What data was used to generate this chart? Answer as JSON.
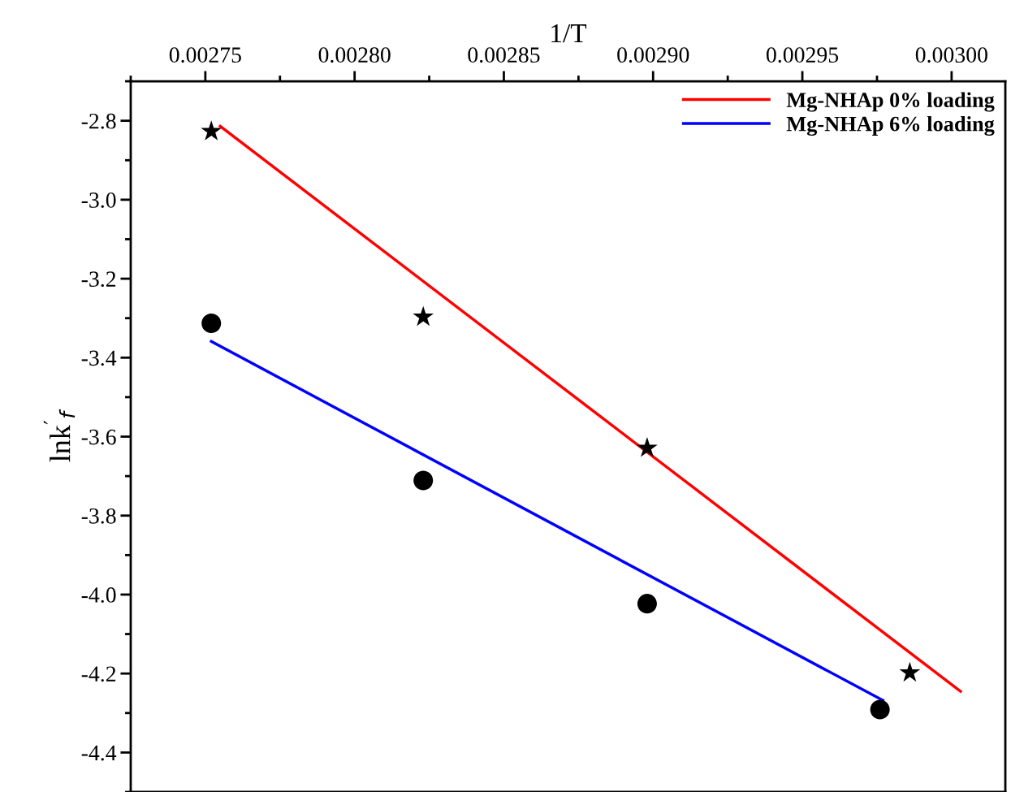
{
  "chart_data": {
    "type": "scatter",
    "xlabel": "1/T",
    "ylabel": "lnk$^{′}$$_{f}$",
    "xlim": [
      0.002725,
      0.003018
    ],
    "xticks": [
      {
        "value": 0.00275,
        "label": "0.00275"
      },
      {
        "value": 0.0028,
        "label": "0.00280"
      },
      {
        "value": 0.00285,
        "label": "0.00285"
      },
      {
        "value": 0.0029,
        "label": "0.00290"
      },
      {
        "value": 0.00295,
        "label": "0.00295"
      },
      {
        "value": 0.003,
        "label": "0.00300"
      }
    ],
    "ylim": [
      -4.5,
      -2.7
    ],
    "yticks": [
      {
        "value": -2.8,
        "label": "-2.8"
      },
      {
        "value": -3.0,
        "label": "-3.0"
      },
      {
        "value": -3.2,
        "label": "-3.2"
      },
      {
        "value": -3.4,
        "label": "-3.4"
      },
      {
        "value": -3.6,
        "label": "-3.6"
      },
      {
        "value": -3.8,
        "label": "-3.8"
      },
      {
        "value": -4.0,
        "label": "-4.0"
      },
      {
        "value": -4.2,
        "label": "-4.2"
      },
      {
        "value": -4.4,
        "label": "-4.4"
      }
    ],
    "legend": "top right",
    "grid": false,
    "series": [
      {
        "type": "line",
        "name": "Mg-NHAp 0% loading",
        "color": "#ff0000",
        "x": [
          0.002755,
          0.003003
        ],
        "values": [
          -2.814,
          -4.245
        ],
        "marker": "none"
      },
      {
        "type": "line",
        "name": "Mg-NHAp 6% loading",
        "color": "#0000ff",
        "x": [
          0.002752,
          0.002977
        ],
        "values": [
          -3.359,
          -4.268
        ],
        "marker": "none"
      },
      {
        "color": "#000000",
        "marker": "star",
        "x": [
          0.002752,
          0.002823,
          0.002898,
          0.002986
        ],
        "values": [
          -2.827,
          -3.297,
          -3.629,
          -4.198
        ]
      },
      {
        "color": "#000000",
        "marker": "circle",
        "x": [
          0.002752,
          0.002823,
          0.002898,
          0.002976
        ],
        "values": [
          -3.313,
          -3.711,
          -4.023,
          -4.291
        ]
      }
    ]
  }
}
